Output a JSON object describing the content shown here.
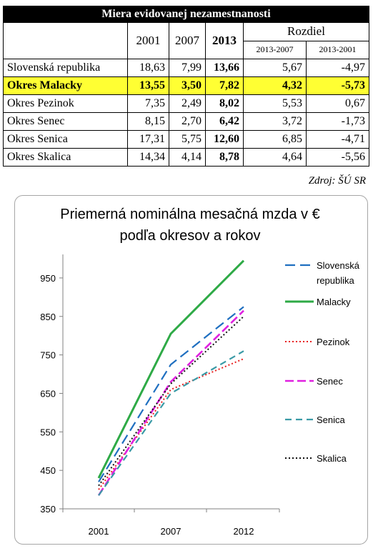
{
  "table": {
    "title": "Miera evidovanej nezamestnanosti",
    "headers": {
      "y2001": "2001",
      "y2007": "2007",
      "y2013": "2013",
      "diff": "Rozdiel",
      "d1": "2013-2007",
      "d2": "2013-2001"
    },
    "rows": [
      {
        "name": "Slovenská republika",
        "v2001": "18,63",
        "v2007": "7,99",
        "v2013": "13,66",
        "d1": "5,67",
        "d2": "-4,97"
      },
      {
        "name": "Okres Malacky",
        "v2001": "13,55",
        "v2007": "3,50",
        "v2013": "7,82",
        "d1": "4,32",
        "d2": "-5,73"
      },
      {
        "name": "Okres Pezinok",
        "v2001": "7,35",
        "v2007": "2,49",
        "v2013": "8,02",
        "d1": "5,53",
        "d2": "0,67"
      },
      {
        "name": "Okres Senec",
        "v2001": "8,15",
        "v2007": "2,70",
        "v2013": "6,42",
        "d1": "3,72",
        "d2": "-1,73"
      },
      {
        "name": "Okres Senica",
        "v2001": "17,31",
        "v2007": "5,75",
        "v2013": "12,60",
        "d1": "6,85",
        "d2": "-4,71"
      },
      {
        "name": "Okres Skalica",
        "v2001": "14,34",
        "v2007": "4,14",
        "v2013": "8,78",
        "d1": "4,64",
        "d2": "-5,56"
      }
    ],
    "source": "Zdroj: ŠÚ SR"
  },
  "chart_data": {
    "type": "line",
    "title": "Priemerná nominálna mesačná mzda v € podľa okresov a rokov",
    "title_lines": [
      "Priemerná nominálna mesačná mzda v €",
      "podľa okresov a rokov"
    ],
    "categories": [
      "2001",
      "2007",
      "2012"
    ],
    "ylim": [
      350,
      1000
    ],
    "yticks": [
      350,
      450,
      550,
      650,
      750,
      850,
      950
    ],
    "grid": false,
    "legend": "right",
    "series": [
      {
        "name": "Slovenská republika",
        "legend_lines": [
          "Slovenská",
          "republika"
        ],
        "values": [
          420,
          725,
          875
        ],
        "color": "#1f6fc0",
        "dash": "14,7",
        "width": 2.2
      },
      {
        "name": "Malacky",
        "legend_lines": [
          "Malacky"
        ],
        "values": [
          430,
          805,
          995
        ],
        "color": "#2eaa46",
        "dash": "",
        "width": 3.0
      },
      {
        "name": "Pezinok",
        "legend_lines": [
          "Pezinok"
        ],
        "values": [
          400,
          660,
          740
        ],
        "color": "#e82020",
        "dash": "2,3",
        "width": 2.0
      },
      {
        "name": "Senec",
        "legend_lines": [
          "Senec"
        ],
        "values": [
          385,
          680,
          865
        ],
        "color": "#e020e0",
        "dash": "12,5",
        "width": 2.6
      },
      {
        "name": "Senica",
        "legend_lines": [
          "Senica"
        ],
        "values": [
          385,
          650,
          760
        ],
        "color": "#3a9aa6",
        "dash": "9,6",
        "width": 2.2
      },
      {
        "name": "Skalica",
        "legend_lines": [
          "Skalica"
        ],
        "values": [
          410,
          675,
          850
        ],
        "color": "#111111",
        "dash": "2,3",
        "width": 2.0
      }
    ]
  }
}
